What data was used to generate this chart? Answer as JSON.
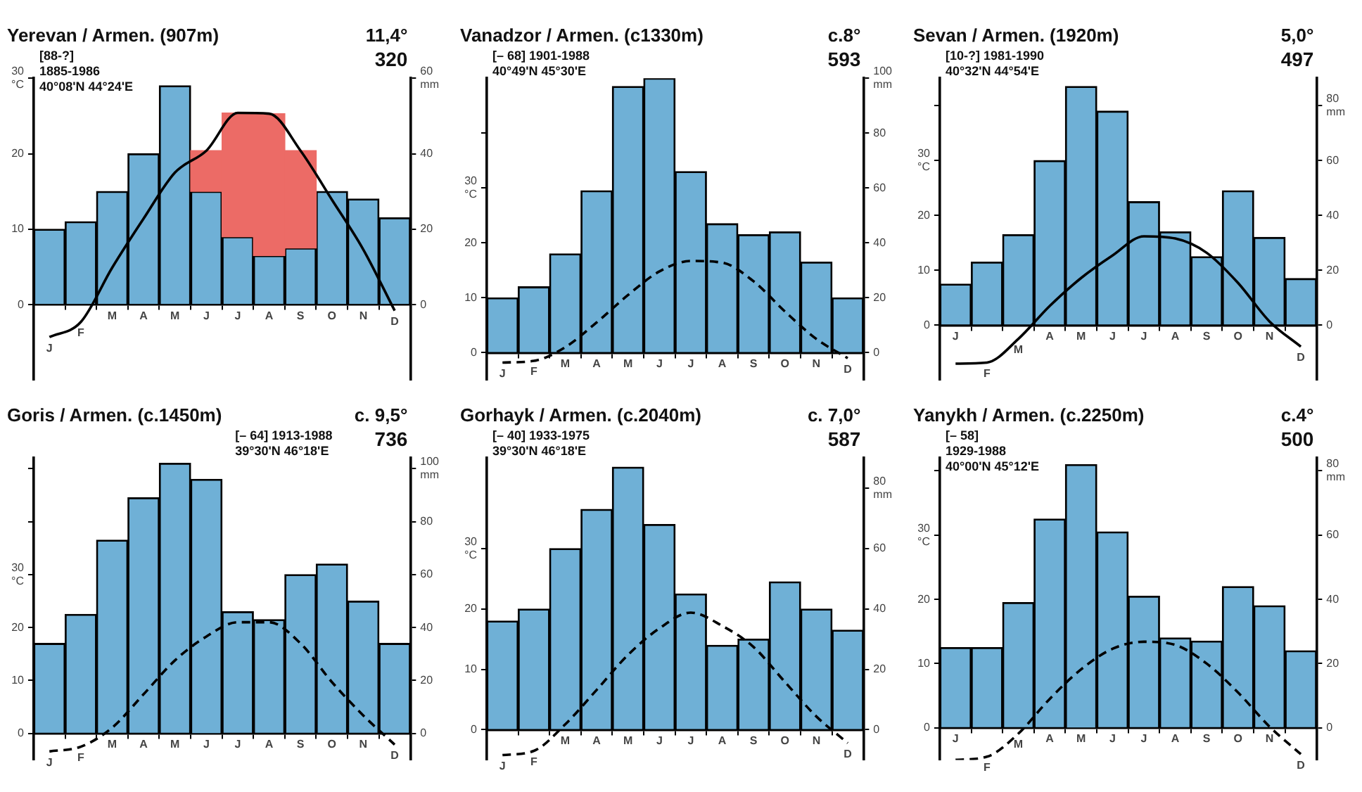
{
  "chart_data": [
    {
      "type": "bar",
      "title": "Yerevan / Armen. (907m)",
      "annotations": [
        "11,4°",
        "320",
        "[88-?]",
        "1885-1986",
        "40°08'N 44°24'E"
      ],
      "categories": [
        "J",
        "F",
        "M",
        "A",
        "M",
        "J",
        "J",
        "A",
        "S",
        "O",
        "N",
        "D"
      ],
      "line_style": "solid",
      "ylim": [
        -10,
        30
      ],
      "yticks": [
        0,
        10,
        20,
        {
          "value": 30,
          "label": "30 °C"
        }
      ],
      "y2lim": [
        -20,
        60
      ],
      "y2ticks": [
        0,
        20,
        40,
        {
          "value": 60,
          "label": "60 mm"
        }
      ],
      "series": [
        {
          "type": "bar",
          "axis": "y2",
          "color": "#6fb0d6",
          "values": [
            20,
            22,
            30,
            40,
            58,
            30,
            18,
            13,
            15,
            30,
            28,
            23
          ]
        },
        {
          "type": "bar",
          "color": "#ec6b66",
          "values": [
            null,
            null,
            null,
            null,
            null,
            5.4,
            16.4,
            18.8,
            12.9,
            null,
            null,
            null
          ],
          "base": [
            null,
            null,
            null,
            null,
            null,
            15,
            9,
            6.5,
            7.5,
            null,
            null,
            null
          ]
        },
        {
          "type": "line",
          "color": "#000000",
          "values": [
            -4.3,
            -2.3,
            4.9,
            11.4,
            17.5,
            20.4,
            25.4,
            25.3,
            20.4,
            13.9,
            7.3,
            -0.8
          ]
        }
      ]
    },
    {
      "type": "bar",
      "title": "Vanadzor / Armen. (c1330m)",
      "annotations": [
        "c.8°",
        "593",
        "[– 68] 1901-1988",
        "40°49'N 45°30'E"
      ],
      "categories": [
        "J",
        "F",
        "M",
        "A",
        "M",
        "J",
        "J",
        "A",
        "S",
        "O",
        "N",
        "D"
      ],
      "line_style": "dashed",
      "ylim": [
        -5,
        50
      ],
      "yticks": [
        0,
        10,
        20,
        {
          "value": 30,
          "label": "30 °C"
        },
        {
          "value": 40,
          "label": null
        }
      ],
      "y2lim": [
        -10,
        100
      ],
      "y2ticks": [
        0,
        20,
        40,
        60,
        80,
        {
          "value": 100,
          "label": "100 mm"
        }
      ],
      "series": [
        {
          "type": "bar",
          "axis": "y2",
          "color": "#6fb0d6",
          "values": [
            20,
            24,
            36,
            59,
            97,
            100,
            66,
            47,
            43,
            44,
            33,
            20
          ]
        },
        {
          "type": "line",
          "color": "#000000",
          "values": [
            -1.8,
            -1.5,
            1,
            5.5,
            10.5,
            14.8,
            16.7,
            16.4,
            13,
            7.5,
            2.5,
            -1
          ]
        }
      ]
    },
    {
      "type": "bar",
      "title": "Sevan / Armen. (1920m)",
      "annotations": [
        "5,0°",
        "497",
        "[10-?] 1981-1990",
        "40°32'N 44°54'E"
      ],
      "categories": [
        "J",
        "F",
        "M",
        "A",
        "M",
        "J",
        "J",
        "A",
        "S",
        "O",
        "N",
        "D"
      ],
      "line_style": "solid",
      "ylim": [
        -10,
        45
      ],
      "yticks": [
        0,
        10,
        20,
        {
          "value": 30,
          "label": "30 °C"
        },
        {
          "value": 40,
          "label": null
        }
      ],
      "y2lim": [
        -20,
        90
      ],
      "y2ticks": [
        0,
        20,
        40,
        60,
        {
          "value": 80,
          "label": "80 mm"
        }
      ],
      "series": [
        {
          "type": "bar",
          "axis": "y2",
          "color": "#6fb0d6",
          "values": [
            15,
            23,
            33,
            60,
            87,
            78,
            45,
            34,
            25,
            49,
            32,
            17
          ]
        },
        {
          "type": "line",
          "color": "#000000",
          "values": [
            -7,
            -6.8,
            -2.5,
            3.5,
            8.6,
            12.7,
            16.2,
            15.8,
            13.2,
            7.7,
            0.7,
            -3.9
          ]
        }
      ]
    },
    {
      "type": "bar",
      "title": "Goris / Armen. (c.1450m)",
      "annotations": [
        "c. 9,5°",
        "736",
        "[– 64] 1913-1988",
        "39°30'N 46°18'E"
      ],
      "categories": [
        "J",
        "F",
        "M",
        "A",
        "M",
        "J",
        "J",
        "A",
        "S",
        "O",
        "N",
        "D"
      ],
      "line_style": "dashed",
      "ylim": [
        -5,
        52
      ],
      "yticks": [
        0,
        10,
        20,
        {
          "value": 30,
          "label": "30 °C"
        },
        {
          "value": 40,
          "label": null
        },
        {
          "value": 50,
          "label": null
        }
      ],
      "y2lim": [
        -10,
        104
      ],
      "y2ticks": [
        0,
        20,
        40,
        60,
        80,
        {
          "value": 100,
          "label": "100 mm"
        }
      ],
      "series": [
        {
          "type": "bar",
          "axis": "y2",
          "color": "#6fb0d6",
          "values": [
            34,
            45,
            73,
            89,
            102,
            96,
            46,
            43,
            60,
            64,
            50,
            34
          ]
        },
        {
          "type": "line",
          "color": "#000000",
          "values": [
            -3.4,
            -2.5,
            1.1,
            7.4,
            13.8,
            18.3,
            21,
            21,
            17,
            9.7,
            3.4,
            -2.1
          ]
        }
      ]
    },
    {
      "type": "bar",
      "title": "Gorhayk / Armen. (c.2040m)",
      "annotations": [
        "c. 7,0°",
        "587",
        "[– 40] 1933-1975",
        "39°30'N 46°18'E"
      ],
      "categories": [
        "J",
        "F",
        "M",
        "A",
        "M",
        "J",
        "J",
        "A",
        "S",
        "O",
        "N",
        "D"
      ],
      "line_style": "dashed",
      "ylim": [
        -5,
        45
      ],
      "yticks": [
        0,
        10,
        20,
        {
          "value": 30,
          "label": "30 °C"
        }
      ],
      "y2lim": [
        -10,
        90
      ],
      "y2ticks": [
        0,
        20,
        40,
        60,
        {
          "value": 80,
          "label": "80 mm"
        }
      ],
      "series": [
        {
          "type": "bar",
          "axis": "y2",
          "color": "#6fb0d6",
          "values": [
            36,
            40,
            60,
            73,
            87,
            68,
            45,
            28,
            30,
            49,
            40,
            33
          ]
        },
        {
          "type": "line",
          "color": "#000000",
          "values": [
            -4.2,
            -3.5,
            0.9,
            6.6,
            12.4,
            16.8,
            19.4,
            17.2,
            13.7,
            7.9,
            2.2,
            -2.2
          ]
        }
      ]
    },
    {
      "type": "bar",
      "title": "Yanykh / Armen. (c.2250m)",
      "annotations": [
        "c.4°",
        "500",
        "[– 58]",
        "1929-1988",
        "40°00'N 45°12'E"
      ],
      "categories": [
        "J",
        "F",
        "M",
        "A",
        "M",
        "J",
        "J",
        "A",
        "S",
        "O",
        "N",
        "D"
      ],
      "line_style": "dashed",
      "ylim": [
        -5,
        42
      ],
      "yticks": [
        0,
        10,
        20,
        {
          "value": 30,
          "label": "30 °C"
        },
        {
          "value": 40,
          "label": null
        }
      ],
      "y2lim": [
        -10,
        84
      ],
      "y2ticks": [
        0,
        20,
        40,
        60,
        {
          "value": 80,
          "label": "80 mm"
        }
      ],
      "series": [
        {
          "type": "bar",
          "axis": "y2",
          "color": "#6fb0d6",
          "values": [
            25,
            25,
            39,
            65,
            82,
            61,
            41,
            28,
            27,
            44,
            38,
            24
          ]
        },
        {
          "type": "line",
          "color": "#000000",
          "values": [
            -5,
            -4.5,
            -0.9,
            4.5,
            9.1,
            12.3,
            13.4,
            12.9,
            10,
            5.5,
            0.2,
            -4.1
          ]
        }
      ]
    }
  ]
}
